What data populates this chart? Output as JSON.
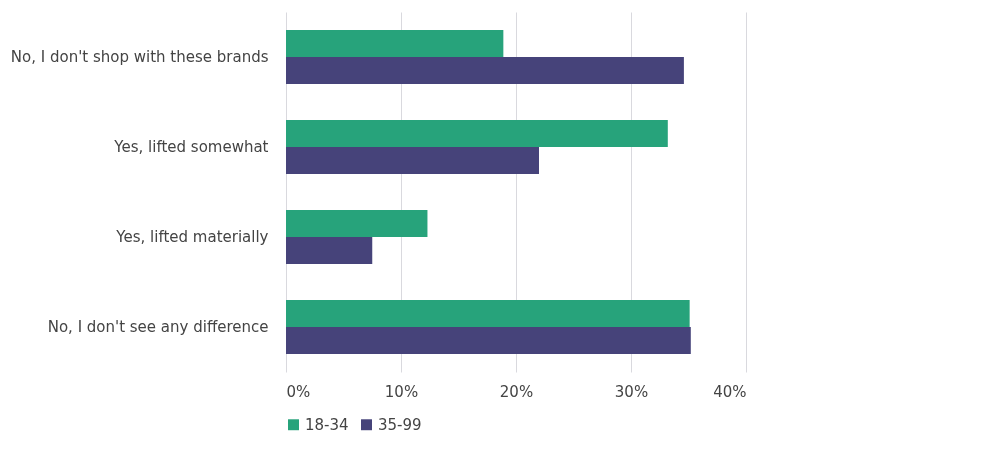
{
  "chart_data": {
    "type": "bar",
    "orientation": "horizontal",
    "categories": [
      "No, I don't shop with these brands",
      "Yes, lifted somewhat",
      "Yes, lifted materially",
      "No, I don't see any difference"
    ],
    "series": [
      {
        "name": "18-34",
        "color": "#27a37b",
        "values": [
          18.9,
          33.2,
          12.3,
          35.1
        ]
      },
      {
        "name": "35-99",
        "color": "#46437a",
        "values": [
          34.6,
          22.0,
          7.5,
          35.2
        ]
      }
    ],
    "xlim": [
      0,
      40
    ],
    "xticks": [
      {
        "value": 0,
        "label": "0%"
      },
      {
        "value": 10,
        "label": "10%"
      },
      {
        "value": 20,
        "label": "20%"
      },
      {
        "value": 30,
        "label": "30%"
      },
      {
        "value": 40,
        "label": "40%"
      }
    ],
    "grid": "x",
    "legend": "bottom"
  }
}
